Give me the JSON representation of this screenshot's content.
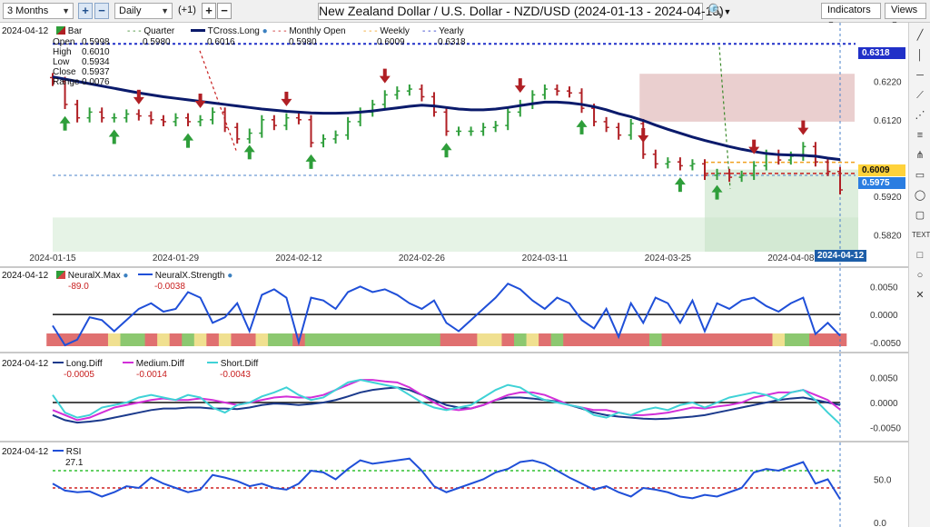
{
  "toolbar": {
    "range": "3 Months",
    "interval": "Daily",
    "offset": "(+1)",
    "title": "New Zealand Dollar / U.S. Dollar - NZD/USD (2024-01-13 - 2024-04-15)",
    "indicators": "Indicators",
    "views": "Views"
  },
  "main": {
    "date": "2024-04-12",
    "bar_label": "Bar",
    "ohlc_labels": [
      "Open",
      "High",
      "Low",
      "Close",
      "Range"
    ],
    "ohlc_values": [
      "0.5998",
      "0.6010",
      "0.5934",
      "0.5937",
      "0.0076"
    ],
    "legend": [
      {
        "name": "Quarter",
        "value": "0.5980"
      },
      {
        "name": "TCross.Long",
        "value": "0.6016"
      },
      {
        "name": "Monthly Open",
        "value": "0.5980"
      },
      {
        "name": "Weekly",
        "value": "0.6009"
      },
      {
        "name": "Yearly",
        "value": "0.6318"
      }
    ],
    "price_ticks": [
      "0.6220",
      "0.6120",
      "0.5920",
      "0.5820"
    ],
    "price_tags": [
      "0.6318",
      "0.6009",
      "0.5975"
    ],
    "date_ticks": [
      "2024-01-15",
      "2024-01-29",
      "2024-02-12",
      "2024-02-26",
      "2024-03-11",
      "2024-03-25",
      "2024-04-08"
    ],
    "current_date_tag": "2024-04-12"
  },
  "neural": {
    "date": "2024-04-12",
    "legend": [
      {
        "name": "NeuralX.Max",
        "value": "-89.0"
      },
      {
        "name": "NeuralX.Strength",
        "value": "-0.0038"
      }
    ],
    "ticks": [
      "0.0050",
      "0.0000",
      "-0.0050"
    ]
  },
  "diff": {
    "date": "2024-04-12",
    "legend": [
      {
        "name": "Long.Diff",
        "value": "-0.0005"
      },
      {
        "name": "Medium.Diff",
        "value": "-0.0014"
      },
      {
        "name": "Short.Diff",
        "value": "-0.0043"
      }
    ],
    "ticks": [
      "0.0050",
      "0.0000",
      "-0.0050"
    ]
  },
  "rsi": {
    "date": "2024-04-12",
    "legend": [
      {
        "name": "RSI",
        "value": "27.1"
      }
    ],
    "ticks": [
      "50.0",
      "0.0"
    ]
  },
  "colors": {
    "up": "#2e9e3a",
    "down": "#b01f24",
    "tcross": "#0a1a6b",
    "strength": "#1f4fd8",
    "long": "#1b3a8c",
    "medium": "#d22fd8",
    "short": "#3fd2d6",
    "quarter": "#3a8a2a",
    "weekly": "#f0a020",
    "yearly": "#2030c8"
  },
  "chart_data": [
    {
      "type": "line",
      "title": "New Zealand Dollar / U.S. Dollar - NZD/USD (2024-01-13 - 2024-04-15)",
      "x": [
        "2024-01-15",
        "2024-01-16",
        "2024-01-17",
        "2024-01-18",
        "2024-01-19",
        "2024-01-22",
        "2024-01-23",
        "2024-01-24",
        "2024-01-25",
        "2024-01-26",
        "2024-01-29",
        "2024-01-30",
        "2024-01-31",
        "2024-02-01",
        "2024-02-02",
        "2024-02-05",
        "2024-02-06",
        "2024-02-07",
        "2024-02-08",
        "2024-02-09",
        "2024-02-12",
        "2024-02-13",
        "2024-02-14",
        "2024-02-15",
        "2024-02-16",
        "2024-02-19",
        "2024-02-20",
        "2024-02-21",
        "2024-02-22",
        "2024-02-23",
        "2024-02-26",
        "2024-02-27",
        "2024-02-28",
        "2024-02-29",
        "2024-03-01",
        "2024-03-04",
        "2024-03-05",
        "2024-03-06",
        "2024-03-07",
        "2024-03-08",
        "2024-03-11",
        "2024-03-12",
        "2024-03-13",
        "2024-03-14",
        "2024-03-15",
        "2024-03-18",
        "2024-03-19",
        "2024-03-20",
        "2024-03-21",
        "2024-03-22",
        "2024-03-25",
        "2024-03-26",
        "2024-03-27",
        "2024-03-28",
        "2024-03-29",
        "2024-04-01",
        "2024-04-02",
        "2024-04-03",
        "2024-04-04",
        "2024-04-05",
        "2024-04-08",
        "2024-04-09",
        "2024-04-10",
        "2024-04-11",
        "2024-04-12"
      ],
      "series": [
        {
          "name": "Close",
          "values": [
            0.622,
            0.616,
            0.6125,
            0.614,
            0.6125,
            0.6125,
            0.6135,
            0.613,
            0.612,
            0.6115,
            0.6125,
            0.6115,
            0.612,
            0.614,
            0.61,
            0.607,
            0.6085,
            0.612,
            0.6105,
            0.6125,
            0.612,
            0.606,
            0.607,
            0.608,
            0.6115,
            0.614,
            0.616,
            0.6185,
            0.6195,
            0.62,
            0.618,
            0.614,
            0.609,
            0.609,
            0.609,
            0.61,
            0.6105,
            0.614,
            0.616,
            0.6185,
            0.62,
            0.6195,
            0.619,
            0.615,
            0.6115,
            0.61,
            0.608,
            0.611,
            0.603,
            0.6005,
            0.601,
            0.6,
            0.6005,
            0.5975,
            0.598,
            0.597,
            0.5975,
            0.6,
            0.603,
            0.6015,
            0.6025,
            0.605,
            0.601,
            0.5985,
            0.5937
          ]
        },
        {
          "name": "TCross.Long",
          "values": [
            0.6232,
            0.6226,
            0.622,
            0.6214,
            0.6208,
            0.6202,
            0.6196,
            0.619,
            0.6185,
            0.618,
            0.6176,
            0.6172,
            0.6168,
            0.6164,
            0.616,
            0.6156,
            0.6152,
            0.6148,
            0.6145,
            0.6142,
            0.614,
            0.6138,
            0.6137,
            0.6137,
            0.6138,
            0.614,
            0.6143,
            0.6147,
            0.6151,
            0.6155,
            0.6158,
            0.6156,
            0.6152,
            0.6148,
            0.6146,
            0.6146,
            0.6148,
            0.6152,
            0.6157,
            0.6162,
            0.6166,
            0.6166,
            0.6164,
            0.616,
            0.6154,
            0.6146,
            0.6136,
            0.6128,
            0.6118,
            0.6106,
            0.6095,
            0.6085,
            0.6075,
            0.6066,
            0.6058,
            0.605,
            0.6043,
            0.6037,
            0.6032,
            0.6029,
            0.6028,
            0.6027,
            0.6025,
            0.602,
            0.6016
          ]
        }
      ],
      "yearly": 0.6318,
      "weekly": 0.6009,
      "quarter": 0.598,
      "monthly_open": 0.598,
      "ylim": [
        0.579,
        0.634
      ],
      "ticks": [
        0.622,
        0.612,
        0.592,
        0.582
      ],
      "down_arrows": [
        "2024-01-24",
        "2024-01-31",
        "2024-02-09",
        "2024-02-21",
        "2024-03-07",
        "2024-03-21",
        "2024-04-03",
        "2024-04-09"
      ],
      "up_arrows": [
        "2024-01-16",
        "2024-01-22",
        "2024-01-30",
        "2024-02-06",
        "2024-02-13",
        "2024-02-28",
        "2024-03-14",
        "2024-03-26",
        "2024-03-29"
      ]
    },
    {
      "type": "line",
      "series": [
        {
          "name": "NeuralX.Strength",
          "values": [
            -0.002,
            -0.0055,
            -0.0045,
            -0.0005,
            -0.001,
            -0.003,
            -0.001,
            0.001,
            0.002,
            0.0005,
            0.001,
            0.004,
            0.003,
            -0.0015,
            -0.0005,
            0.002,
            -0.003,
            0.0035,
            0.0045,
            0.003,
            -0.005,
            0.003,
            0.0025,
            0.001,
            0.004,
            0.005,
            0.004,
            0.0045,
            0.0035,
            0.002,
            0.001,
            0.0025,
            -0.0015,
            -0.003,
            -0.001,
            0.001,
            0.003,
            0.0055,
            0.0045,
            0.0025,
            0.001,
            0.003,
            0.002,
            -0.001,
            -0.0025,
            0.001,
            -0.004,
            0.002,
            -0.0015,
            0.003,
            0.002,
            -0.0015,
            0.0025,
            -0.003,
            0.002,
            0.001,
            0.0025,
            0.003,
            0.0015,
            0.0005,
            0.002,
            0.003,
            -0.0035,
            -0.0015,
            -0.0038
          ]
        }
      ],
      "ylim": [
        -0.006,
        0.007
      ],
      "ticks": [
        0.005,
        0.0,
        -0.005
      ],
      "max_colors": [
        "r",
        "r",
        "r",
        "r",
        "r",
        "y",
        "g",
        "g",
        "r",
        "y",
        "r",
        "g",
        "y",
        "r",
        "y",
        "r",
        "r",
        "y",
        "g",
        "g",
        "r",
        "g",
        "g",
        "g",
        "g",
        "g",
        "g",
        "g",
        "g",
        "g",
        "g",
        "g",
        "r",
        "r",
        "r",
        "y",
        "y",
        "r",
        "g",
        "y",
        "r",
        "g",
        "r",
        "r",
        "r",
        "r",
        "r",
        "r",
        "r",
        "g",
        "r",
        "r",
        "r",
        "r",
        "r",
        "r",
        "r",
        "r",
        "r",
        "y",
        "g",
        "g",
        "r",
        "r",
        "r"
      ]
    },
    {
      "type": "line",
      "series": [
        {
          "name": "Long.Diff",
          "values": [
            -0.0025,
            -0.0035,
            -0.004,
            -0.0038,
            -0.0035,
            -0.003,
            -0.0025,
            -0.002,
            -0.0015,
            -0.0012,
            -0.0012,
            -0.001,
            -0.001,
            -0.0012,
            -0.0012,
            -0.0013,
            -0.001,
            -0.0005,
            -0.0002,
            -0.0003,
            -0.0005,
            -0.0003,
            0.0,
            0.0005,
            0.0012,
            0.002,
            0.0025,
            0.0028,
            0.003,
            0.0025,
            0.0015,
            0.0005,
            -0.0005,
            -0.001,
            -0.0012,
            -0.0005,
            0.0005,
            0.001,
            0.001,
            0.0008,
            0.0005,
            0.0002,
            -0.0005,
            -0.0012,
            -0.002,
            -0.0025,
            -0.0028,
            -0.003,
            -0.0032,
            -0.0033,
            -0.0032,
            -0.003,
            -0.0028,
            -0.0025,
            -0.002,
            -0.0015,
            -0.001,
            -0.0005,
            0.0,
            0.0005,
            0.0008,
            0.001,
            0.0005,
            0.0,
            -0.0005
          ]
        },
        {
          "name": "Medium.Diff",
          "values": [
            -0.0015,
            -0.0025,
            -0.0035,
            -0.003,
            -0.002,
            -0.001,
            -0.0005,
            0.0,
            0.0005,
            0.0008,
            0.0005,
            0.0005,
            0.0008,
            0.0005,
            0.0,
            -0.0005,
            0.0,
            0.0005,
            0.001,
            0.0012,
            0.001,
            0.001,
            0.0015,
            0.0025,
            0.0035,
            0.0045,
            0.0045,
            0.0042,
            0.004,
            0.003,
            0.0015,
            0.0,
            -0.0012,
            -0.0015,
            -0.0012,
            -0.0005,
            0.0005,
            0.0015,
            0.002,
            0.002,
            0.0015,
            0.0005,
            -0.0005,
            -0.001,
            -0.0015,
            -0.0015,
            -0.002,
            -0.0025,
            -0.0025,
            -0.0023,
            -0.002,
            -0.0015,
            -0.001,
            -0.0012,
            -0.0008,
            -0.0005,
            0.0,
            0.001,
            0.0015,
            0.002,
            0.002,
            0.0025,
            0.0015,
            0.0005,
            -0.0014
          ]
        },
        {
          "name": "Short.Diff",
          "values": [
            0.0015,
            -0.002,
            -0.003,
            -0.0025,
            -0.001,
            -0.0005,
            0.0,
            0.001,
            0.0015,
            0.001,
            0.0005,
            0.0015,
            0.001,
            -0.001,
            -0.002,
            -0.0005,
            0.0,
            0.0012,
            0.002,
            0.003,
            0.0015,
            0.0005,
            0.001,
            0.0025,
            0.004,
            0.0045,
            0.004,
            0.0035,
            0.003,
            0.0015,
            0.0,
            -0.001,
            -0.0015,
            -0.001,
            -0.0005,
            0.001,
            0.0025,
            0.0035,
            0.003,
            0.0015,
            0.0005,
            0.0,
            -0.0005,
            -0.001,
            -0.0025,
            -0.003,
            -0.002,
            -0.0025,
            -0.0015,
            -0.001,
            -0.0015,
            -0.0005,
            0.0,
            -0.001,
            0.0,
            0.001,
            0.0015,
            0.002,
            0.0015,
            0.0005,
            0.002,
            0.0025,
            0.0005,
            -0.002,
            -0.0043
          ]
        }
      ],
      "ylim": [
        -0.0065,
        0.0065
      ],
      "ticks": [
        0.005,
        0.0,
        -0.005
      ]
    },
    {
      "type": "line",
      "series": [
        {
          "name": "RSI",
          "values": [
            45,
            37,
            35,
            36,
            30,
            35,
            42,
            40,
            52,
            45,
            40,
            35,
            38,
            55,
            52,
            48,
            42,
            45,
            40,
            38,
            45,
            60,
            58,
            50,
            62,
            72,
            68,
            70,
            72,
            74,
            60,
            42,
            35,
            40,
            45,
            50,
            58,
            62,
            70,
            72,
            68,
            60,
            52,
            45,
            38,
            42,
            35,
            30,
            40,
            38,
            35,
            30,
            28,
            32,
            30,
            35,
            40,
            58,
            62,
            60,
            65,
            70,
            45,
            50,
            27.1
          ]
        }
      ],
      "ylim": [
        0,
        80
      ],
      "ticks": [
        50.0,
        0.0
      ],
      "overbought": 60,
      "oversold": 40
    }
  ]
}
